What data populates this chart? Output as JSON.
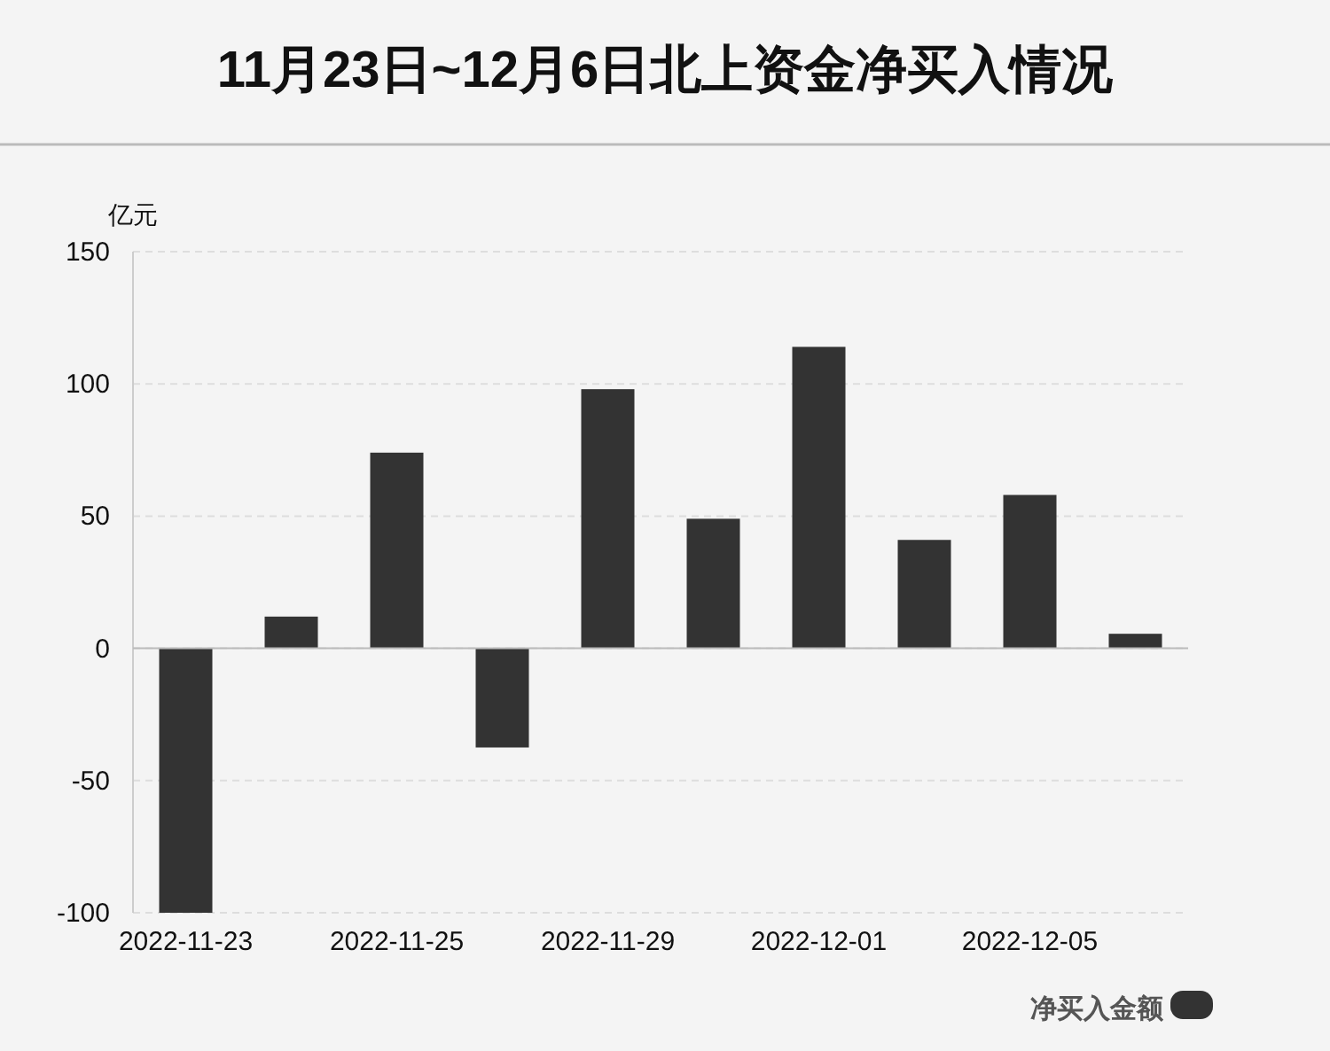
{
  "chart_data": {
    "type": "bar",
    "title": "11月23日~12月6日北上资金净买入情况",
    "ylabel": "亿元",
    "categories": [
      "2022-11-23",
      null,
      "2022-11-25",
      null,
      "2022-11-29",
      null,
      "2022-12-01",
      null,
      "2022-12-05",
      null
    ],
    "series": [
      {
        "name": "净买入金额",
        "color": "#333333",
        "values": [
          -100,
          12,
          74,
          -37.5,
          98,
          49,
          114,
          41,
          58,
          5.5
        ]
      }
    ],
    "ylim": [
      -100,
      150
    ],
    "yticks": [
      -100,
      -50,
      0,
      50,
      100,
      150
    ],
    "grid": "y",
    "legend": "bottom right"
  }
}
